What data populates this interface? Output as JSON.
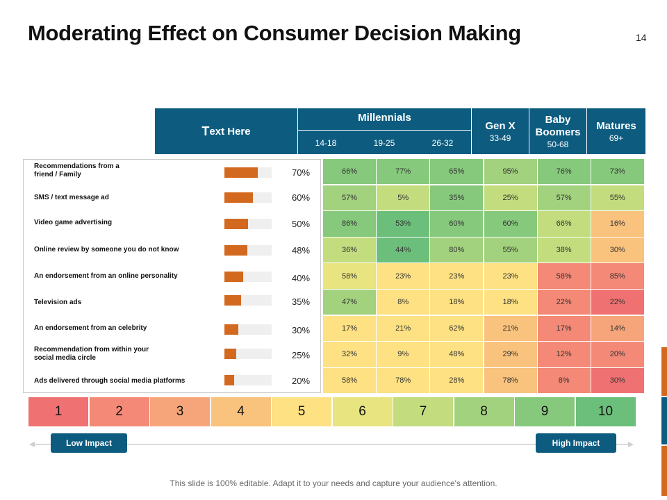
{
  "slide": {
    "title": "Moderating Effect on Consumer Decision Making",
    "page_number": "14",
    "footer": "This slide is 100% editable. Adapt it to your needs and capture your audience's attention."
  },
  "header": {
    "text_here_first": "T",
    "text_here_rest": "ext Here",
    "millennials": "Millennials",
    "millennial_ages": [
      "14-18",
      "19-25",
      "26-32"
    ],
    "genx": "Gen X",
    "genx_age": "33-49",
    "baby_boomers": "Baby Boomers",
    "baby_boomers_age": "50-68",
    "matures": "Matures",
    "matures_age": "69+"
  },
  "colors": {
    "header": "#0d5c80",
    "bar": "#d2691e",
    "scale": [
      "#f07171",
      "#f38976",
      "#f6a57a",
      "#f9c27d",
      "#fde182",
      "#e8e47f",
      "#c3dc7e",
      "#a2d27d",
      "#86c97c",
      "#6bbf7a"
    ]
  },
  "chart_data": [
    {
      "type": "bar",
      "orientation": "horizontal",
      "title": "",
      "categories": [
        "Recommendations from a friend / Family",
        "SMS / text message ad",
        "Video game advertising",
        "Online review by someone you do not know",
        "An endorsement from an online personality",
        "Television ads",
        "An endorsement from an celebrity",
        "Recommendation from within your social media circle",
        "Ads delivered through social media platforms"
      ],
      "labels_display": [
        "Recommendations from a\nfriend / Family",
        "SMS / text message ad",
        "Video game advertising",
        "Online review by someone you do not know",
        "An endorsement from an online personality",
        "Television ads",
        "An endorsement from an celebrity",
        "Recommendation from within your\nsocial media circle",
        "Ads delivered through social media platforms"
      ],
      "values": [
        70,
        60,
        50,
        48,
        40,
        35,
        30,
        25,
        20
      ],
      "value_labels": [
        "70%",
        "60%",
        "50%",
        "48%",
        "40%",
        "35%",
        "30%",
        "25%",
        "20%"
      ],
      "xlim": [
        0,
        100
      ]
    },
    {
      "type": "heatmap",
      "title": "",
      "columns": [
        "14-18",
        "19-25",
        "26-32",
        "Gen X",
        "Baby Boomers",
        "Matures"
      ],
      "values": [
        [
          66,
          77,
          65,
          95,
          76,
          73
        ],
        [
          57,
          5,
          35,
          25,
          57,
          55
        ],
        [
          86,
          53,
          60,
          60,
          66,
          16
        ],
        [
          36,
          44,
          80,
          55,
          38,
          30
        ],
        [
          58,
          23,
          23,
          23,
          58,
          85
        ],
        [
          47,
          8,
          18,
          18,
          22,
          22
        ],
        [
          17,
          21,
          62,
          21,
          17,
          14
        ],
        [
          32,
          9,
          48,
          29,
          12,
          20
        ],
        [
          58,
          78,
          28,
          78,
          8,
          30
        ]
      ],
      "impact_levels": [
        [
          9,
          9,
          9,
          8,
          9,
          9
        ],
        [
          8,
          7,
          9,
          7,
          8,
          7
        ],
        [
          9,
          10,
          9,
          9,
          7,
          4
        ],
        [
          7,
          10,
          8,
          8,
          7,
          4
        ],
        [
          6,
          5,
          5,
          5,
          2,
          2
        ],
        [
          8,
          5,
          5,
          5,
          2,
          1
        ],
        [
          5,
          5,
          5,
          4,
          2,
          3
        ],
        [
          5,
          5,
          5,
          4,
          2,
          2
        ],
        [
          5,
          5,
          5,
          4,
          2,
          1
        ]
      ],
      "scale": [
        "1",
        "2",
        "3",
        "4",
        "5",
        "6",
        "7",
        "8",
        "9",
        "10"
      ],
      "scale_low_label": "Low Impact",
      "scale_high_label": "High Impact"
    }
  ]
}
